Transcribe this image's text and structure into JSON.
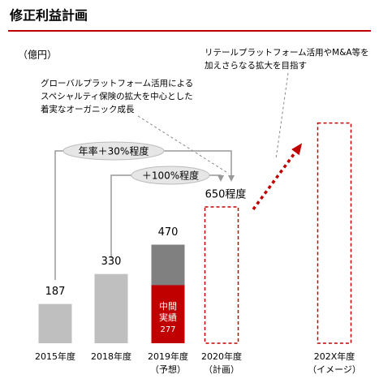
{
  "chart_data": {
    "type": "bar",
    "title": "修正利益計画",
    "unit_label": "（億円）",
    "categories": [
      "2015年度",
      "2018年度",
      "2019年度",
      "2020年度",
      "202X年度"
    ],
    "category_notes": [
      null,
      null,
      "（予想）",
      "（計画）",
      "（イメージ）"
    ],
    "values": [
      187,
      330,
      470,
      650,
      1050
    ],
    "value_labels": [
      "187",
      "330",
      "470",
      "650程度",
      null
    ],
    "bar_styles": [
      "actual",
      "actual",
      "forecast",
      "plan",
      "plan"
    ],
    "colors": {
      "actual": "#bfbfbf",
      "forecast": "#808080",
      "plan": "#c00000",
      "interim": "#c00000"
    },
    "interim": {
      "category_index": 2,
      "label_lines": [
        "中間",
        "実績"
      ],
      "value": 277,
      "value_label": "277"
    },
    "annotations": {
      "growth_from_2015": "年率＋30%程度",
      "growth_from_2018": "＋100%程度",
      "callout_left": [
        "グローバルプラットフォーム活用による",
        "スペシャルティ保険の拡大を中心とした",
        "着実なオーガニック成長"
      ],
      "callout_right": [
        "リテールプラットフォーム活用やM&A等を",
        "加えさらなる拡大を目指す"
      ]
    }
  }
}
